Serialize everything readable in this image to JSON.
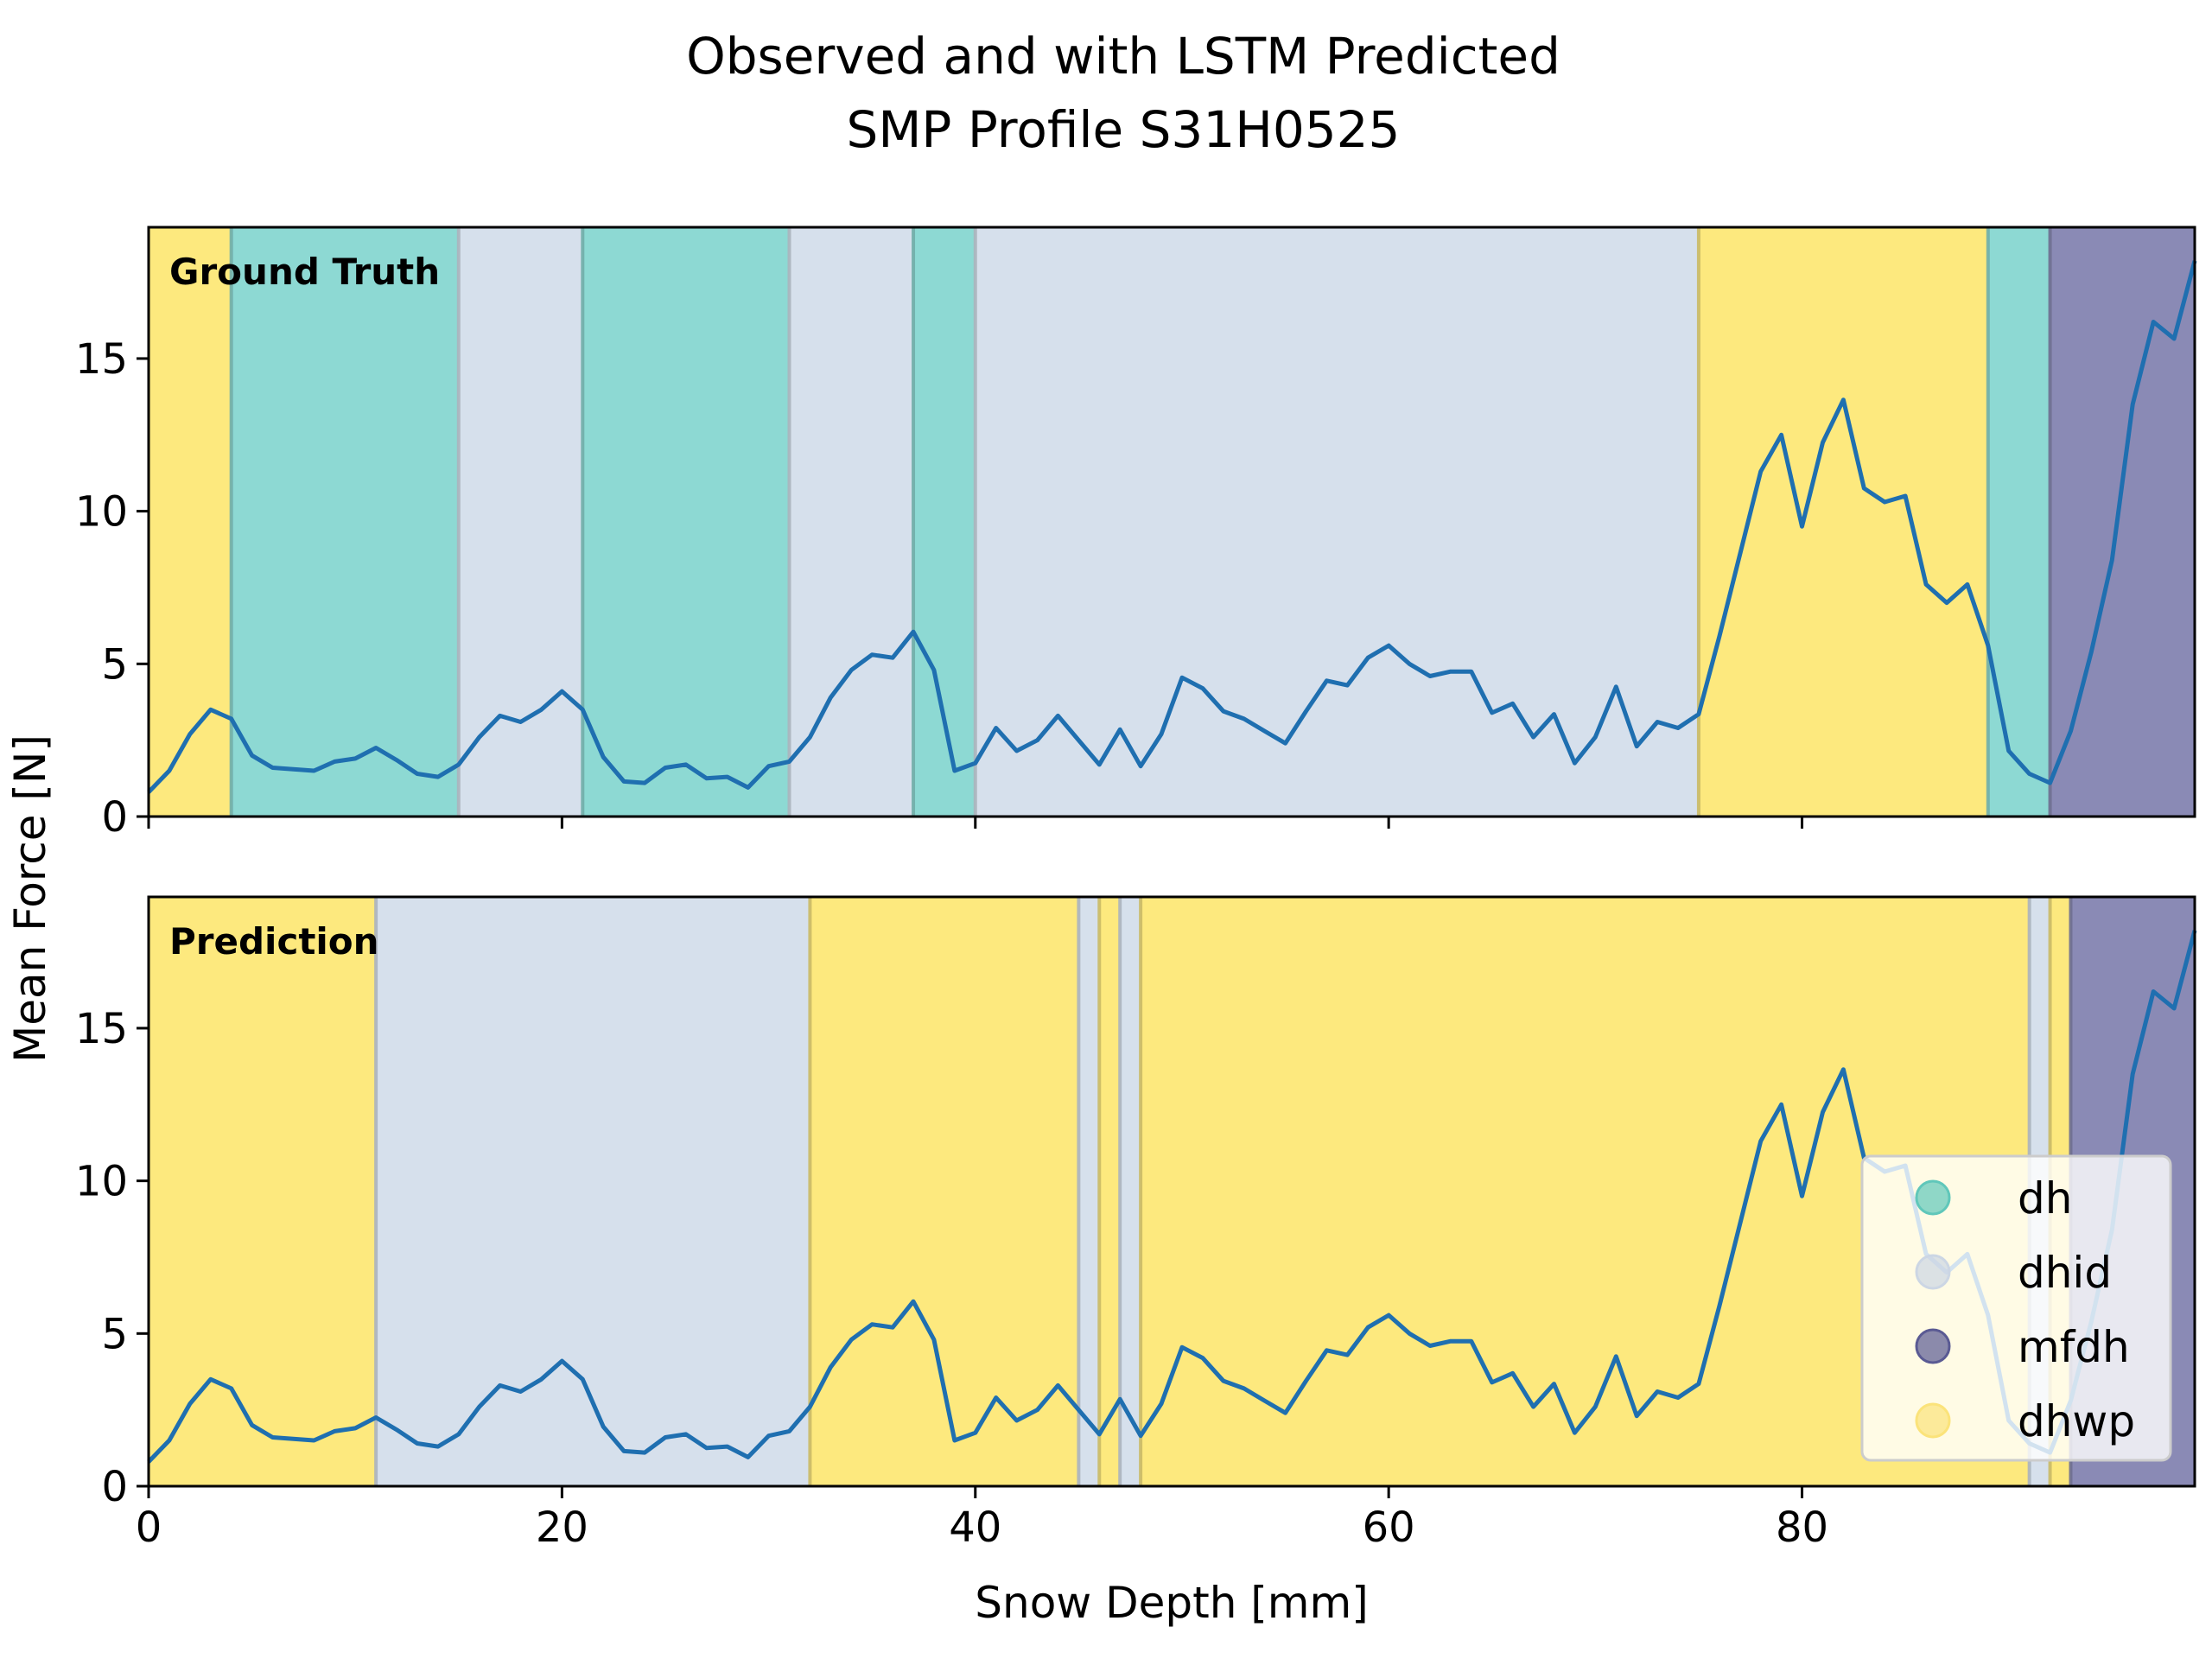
{
  "chart_data": {
    "type": "line",
    "title": [
      "Observed and with LSTM Predicted",
      "SMP Profile S31H0525"
    ],
    "xlabel": "Snow Depth [mm]",
    "ylabel": "Mean Force [N]",
    "xlim": [
      0,
      99
    ],
    "ylim": [
      0,
      19.3
    ],
    "xticks": [
      0,
      20,
      40,
      60,
      80
    ],
    "yticks": [
      0,
      5,
      10,
      15
    ],
    "grid": false,
    "colors": {
      "dh": "#8dd9d3",
      "dhid": "#d6e0ec",
      "mfdh": "#8a8ab5",
      "dhwp": "#fde97e",
      "line": "#1f6fb0"
    },
    "legend": {
      "placement": "lower-right",
      "entries": [
        {
          "key": "dh",
          "label": "dh",
          "color": "#60c7ba"
        },
        {
          "key": "dhid",
          "label": "dhid",
          "color": "#ccd6e4"
        },
        {
          "key": "mfdh",
          "label": "mfdh",
          "color": "#5a5a93"
        },
        {
          "key": "dhwp",
          "label": "dhwp",
          "color": "#fbe37a"
        }
      ]
    },
    "series": {
      "x": [
        0,
        1,
        2,
        3,
        4,
        5,
        6,
        7,
        8,
        9,
        10,
        11,
        12,
        13,
        14,
        15,
        16,
        17,
        18,
        19,
        20,
        21,
        22,
        23,
        24,
        25,
        26,
        27,
        28,
        29,
        30,
        31,
        32,
        33,
        34,
        35,
        36,
        37,
        38,
        39,
        40,
        41,
        42,
        43,
        44,
        45,
        46,
        47,
        48,
        49,
        50,
        51,
        52,
        53,
        54,
        55,
        56,
        57,
        58,
        59,
        60,
        61,
        62,
        63,
        64,
        65,
        66,
        67,
        68,
        69,
        70,
        71,
        72,
        73,
        74,
        75,
        76,
        77,
        78,
        79,
        80,
        81,
        82,
        83,
        84,
        85,
        86,
        87,
        88,
        89,
        90,
        91,
        92,
        93,
        94,
        95,
        96,
        97,
        98,
        99
      ],
      "y": [
        0.8,
        1.5,
        2.7,
        3.5,
        3.2,
        2.0,
        1.6,
        1.55,
        1.5,
        1.8,
        1.9,
        2.25,
        1.85,
        1.4,
        1.3,
        1.7,
        2.6,
        3.3,
        3.1,
        3.5,
        4.1,
        3.5,
        1.95,
        1.15,
        1.1,
        1.6,
        1.7,
        1.25,
        1.3,
        0.95,
        1.65,
        1.8,
        2.6,
        3.9,
        4.8,
        5.3,
        5.2,
        6.05,
        4.8,
        1.5,
        1.75,
        2.9,
        2.15,
        2.5,
        3.3,
        2.5,
        1.7,
        2.85,
        1.65,
        2.7,
        4.55,
        4.2,
        3.45,
        3.2,
        2.8,
        2.4,
        3.45,
        4.45,
        4.3,
        5.2,
        5.6,
        5.0,
        4.6,
        4.75,
        4.75,
        3.4,
        3.7,
        2.6,
        3.35,
        1.75,
        2.6,
        4.25,
        2.3,
        3.1,
        2.9,
        3.35,
        5.9,
        8.6,
        11.3,
        12.5,
        9.5,
        12.25,
        13.65,
        10.75,
        10.3,
        10.5,
        7.6,
        7.0,
        7.6,
        5.6,
        2.15,
        1.4,
        1.1,
        2.8,
        5.4,
        8.4,
        13.5,
        16.2,
        15.65,
        18.2
      ]
    },
    "panels": [
      {
        "label": "Ground Truth",
        "segments": [
          {
            "from": 0,
            "to": 4,
            "class": "dhwp"
          },
          {
            "from": 4,
            "to": 15,
            "class": "dh"
          },
          {
            "from": 15,
            "to": 21,
            "class": "dhid"
          },
          {
            "from": 21,
            "to": 31,
            "class": "dh"
          },
          {
            "from": 31,
            "to": 37,
            "class": "dhid"
          },
          {
            "from": 37,
            "to": 40,
            "class": "dh"
          },
          {
            "from": 40,
            "to": 75,
            "class": "dhid"
          },
          {
            "from": 75,
            "to": 89,
            "class": "dhwp"
          },
          {
            "from": 89,
            "to": 92,
            "class": "dh"
          },
          {
            "from": 92,
            "to": 99,
            "class": "mfdh"
          }
        ]
      },
      {
        "label": "Prediction",
        "segments": [
          {
            "from": 0,
            "to": 11,
            "class": "dhwp"
          },
          {
            "from": 11,
            "to": 32,
            "class": "dhid"
          },
          {
            "from": 32,
            "to": 45,
            "class": "dhwp"
          },
          {
            "from": 45,
            "to": 46,
            "class": "dhid"
          },
          {
            "from": 46,
            "to": 47,
            "class": "dhwp"
          },
          {
            "from": 47,
            "to": 48,
            "class": "dhid"
          },
          {
            "from": 48,
            "to": 91,
            "class": "dhwp"
          },
          {
            "from": 91,
            "to": 92,
            "class": "dhid"
          },
          {
            "from": 92,
            "to": 93,
            "class": "dhwp"
          },
          {
            "from": 93,
            "to": 99,
            "class": "mfdh"
          }
        ]
      }
    ]
  }
}
